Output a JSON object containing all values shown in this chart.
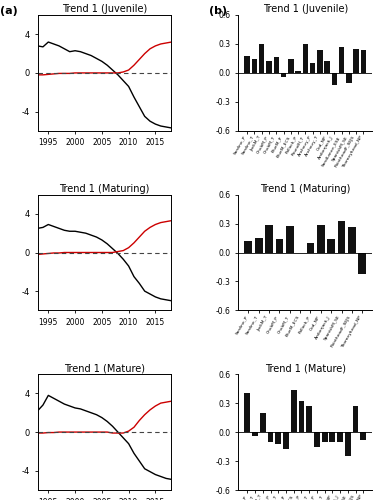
{
  "left_titles": [
    "Trend 1 (Juvenile)",
    "Trend 1 (Maturing)",
    "Trend 1 (Mature)"
  ],
  "right_titles": [
    "Trend 1 (Juvenile)",
    "Trend 1 (Maturing)",
    "Trend 1 (Mature)"
  ],
  "years": [
    1993,
    1994,
    1995,
    1996,
    1997,
    1998,
    1999,
    2000,
    2001,
    2002,
    2003,
    2004,
    2005,
    2006,
    2007,
    2008,
    2009,
    2010,
    2011,
    2012,
    2013,
    2014,
    2015,
    2016,
    2017,
    2018
  ],
  "left_black": [
    [
      2.8,
      2.7,
      3.2,
      3.0,
      2.8,
      2.5,
      2.2,
      2.3,
      2.2,
      2.0,
      1.8,
      1.5,
      1.2,
      0.8,
      0.3,
      -0.2,
      -0.8,
      -1.4,
      -2.5,
      -3.5,
      -4.5,
      -5.0,
      -5.3,
      -5.5,
      -5.6,
      -5.7
    ],
    [
      2.5,
      2.6,
      2.9,
      2.7,
      2.5,
      2.3,
      2.2,
      2.2,
      2.1,
      2.0,
      1.8,
      1.6,
      1.3,
      0.9,
      0.4,
      -0.1,
      -0.7,
      -1.4,
      -2.5,
      -3.2,
      -4.0,
      -4.3,
      -4.6,
      -4.8,
      -4.9,
      -5.0
    ],
    [
      2.2,
      2.8,
      3.8,
      3.5,
      3.2,
      2.9,
      2.7,
      2.5,
      2.4,
      2.2,
      2.0,
      1.8,
      1.5,
      1.1,
      0.6,
      0.0,
      -0.6,
      -1.2,
      -2.2,
      -3.0,
      -3.8,
      -4.1,
      -4.4,
      -4.6,
      -4.8,
      -4.9
    ]
  ],
  "left_red": [
    [
      -0.2,
      -0.2,
      -0.15,
      -0.1,
      -0.05,
      -0.05,
      -0.05,
      0.0,
      0.0,
      0.0,
      0.0,
      0.0,
      0.0,
      0.0,
      0.0,
      0.0,
      0.1,
      0.3,
      0.8,
      1.4,
      2.0,
      2.5,
      2.8,
      3.0,
      3.1,
      3.2
    ],
    [
      -0.2,
      -0.15,
      -0.1,
      -0.05,
      -0.05,
      0.0,
      0.0,
      0.0,
      0.0,
      0.0,
      0.0,
      0.0,
      0.0,
      0.0,
      0.0,
      0.1,
      0.2,
      0.5,
      1.0,
      1.6,
      2.2,
      2.6,
      2.9,
      3.1,
      3.2,
      3.3
    ],
    [
      -0.1,
      -0.1,
      -0.05,
      -0.05,
      0.0,
      0.0,
      0.0,
      0.0,
      0.0,
      0.0,
      0.0,
      0.0,
      0.0,
      0.0,
      -0.1,
      -0.1,
      -0.1,
      0.1,
      0.5,
      1.2,
      1.8,
      2.3,
      2.7,
      3.0,
      3.1,
      3.2
    ]
  ],
  "bar_labels_juv": [
    "Sardine_P",
    "Sardine_T",
    "JackM_T",
    "ChubM_P",
    "ChubM_T",
    "BlueM_P",
    "BlueM_ECS",
    "Pollock_P",
    "RoundH_T",
    "Anchovy_P",
    "Anchovy_T",
    "Cod_NP",
    "Amberjack_J",
    "SandLance_ESE",
    "SpanishM_SE",
    "PointheadF_SEJS",
    "Thorneyhead_NP"
  ],
  "bar_values_juv": [
    0.18,
    0.14,
    0.3,
    0.12,
    0.16,
    -0.04,
    0.14,
    0.02,
    0.3,
    0.1,
    0.24,
    0.12,
    -0.12,
    0.27,
    -0.1,
    0.25,
    0.24
  ],
  "bar_labels_mat": [
    "Sardine_P",
    "Sardine_T",
    "JackM_T",
    "ChubM_P",
    "ChubM_T",
    "BlueM_ECS",
    "Pollock_P",
    "Cod_NP",
    "Amberjack_J",
    "SpanishM_SE",
    "PointheadF_SEJS",
    "Thorneyhead_NP"
  ],
  "bar_values_mat": [
    0.12,
    0.15,
    0.28,
    0.14,
    0.27,
    -0.01,
    0.1,
    0.28,
    0.14,
    0.33,
    0.26,
    -0.22
  ],
  "bar_labels_mature": [
    "Sardine_P",
    "Sardine_T",
    "JackM_T",
    "ChubM_P",
    "ChubM_T",
    "BlueM_P",
    "BlueM_ECS",
    "Pollock_P",
    "RoundH_T",
    "Anchovy_P",
    "Anchovy_T",
    "Cod_NP",
    "Amberjack_J",
    "SpanishM_SE",
    "PointheadF_SEJS",
    "Thorneyhead_NP"
  ],
  "bar_values_mature": [
    0.4,
    -0.04,
    0.2,
    -0.1,
    -0.12,
    -0.18,
    0.44,
    0.32,
    0.27,
    -0.15,
    -0.1,
    -0.1,
    -0.1,
    -0.25,
    0.27,
    -0.08
  ],
  "ylim_left": [
    -6,
    6
  ],
  "ylim_right": [
    -0.6,
    0.6
  ],
  "xticks_left": [
    1995,
    2000,
    2005,
    2010,
    2015
  ],
  "bar_color": "#111111",
  "black_line_color": "#000000",
  "red_line_color": "#cc0000",
  "dashed_color": "#444444",
  "bg_color": "#ffffff"
}
